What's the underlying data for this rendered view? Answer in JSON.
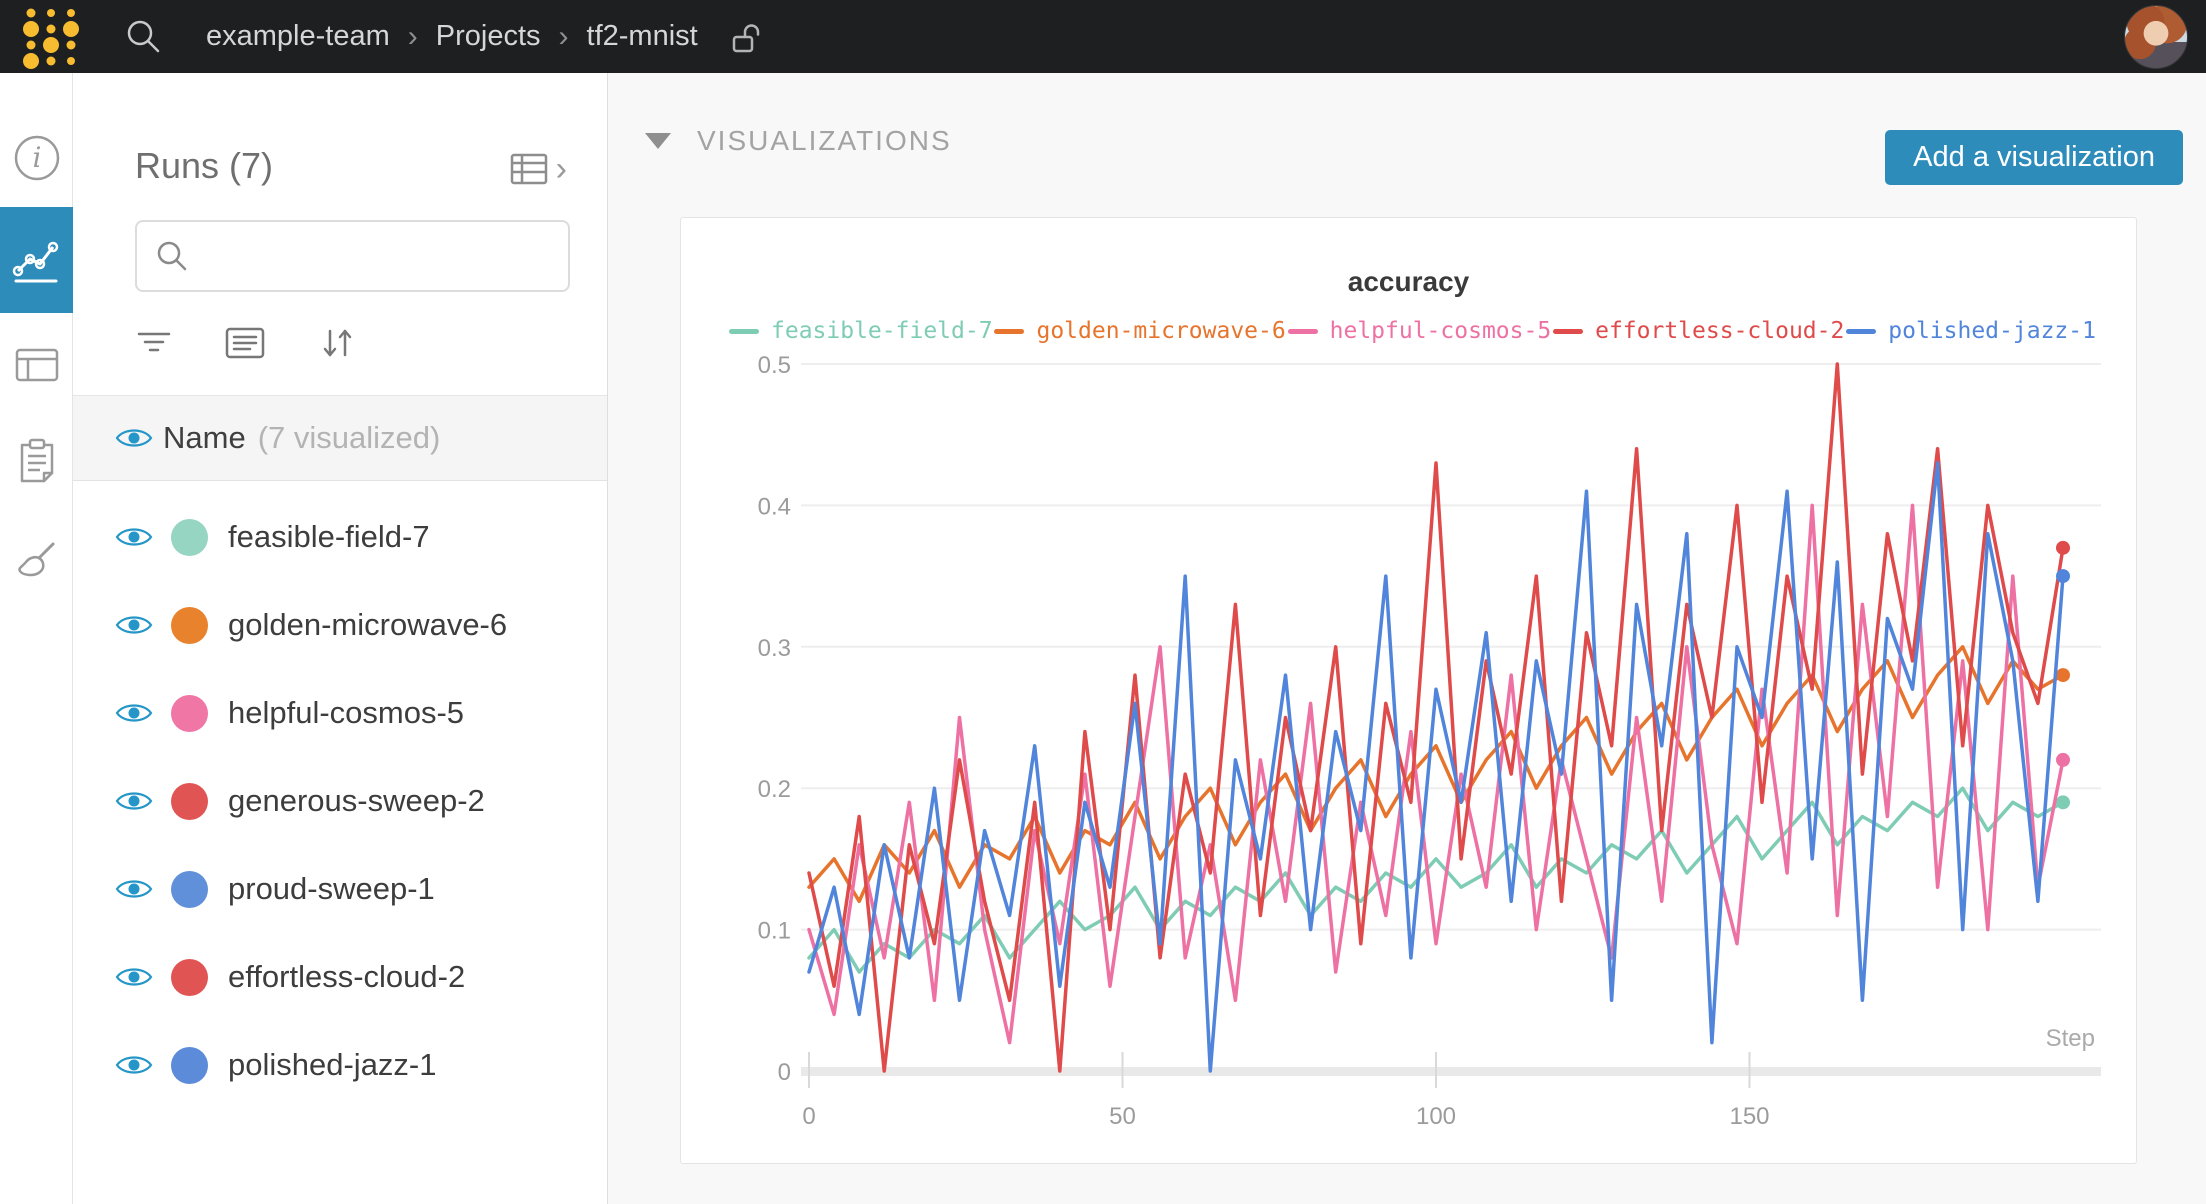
{
  "accent_color": "#2e8cbb",
  "navbar": {
    "breadcrumb": {
      "team": "example-team",
      "section": "Projects",
      "project": "tf2-mnist"
    },
    "privacy": "unlocked"
  },
  "sidebar": {
    "items": [
      {
        "id": "overview",
        "icon": "info-icon",
        "active": false
      },
      {
        "id": "charts",
        "icon": "line-chart-icon",
        "active": true
      },
      {
        "id": "table",
        "icon": "table-icon",
        "active": false
      },
      {
        "id": "notes",
        "icon": "clipboard-icon",
        "active": false
      },
      {
        "id": "sweeps",
        "icon": "broom-icon",
        "active": false
      }
    ]
  },
  "runs_panel": {
    "title": "Runs (7)",
    "search": {
      "value": ""
    },
    "header": {
      "label": "Name",
      "sublabel": "(7 visualized)"
    },
    "eye_color": "#2596c8",
    "runs": [
      {
        "name": "feasible-field-7",
        "color": "#97d5c3"
      },
      {
        "name": "golden-microwave-6",
        "color": "#e8822d"
      },
      {
        "name": "helpful-cosmos-5",
        "color": "#ef76a5"
      },
      {
        "name": "generous-sweep-2",
        "color": "#e05553"
      },
      {
        "name": "proud-sweep-1",
        "color": "#6090da"
      },
      {
        "name": "effortless-cloud-2",
        "color": "#e05553"
      },
      {
        "name": "polished-jazz-1",
        "color": "#5c8bda"
      }
    ]
  },
  "main": {
    "section_title": "VISUALIZATIONS",
    "add_button_label": "Add a visualization"
  },
  "chart_data": {
    "type": "line",
    "title": "accuracy",
    "xlabel": "Step",
    "ylabel": "",
    "xlim": [
      0,
      200
    ],
    "ylim": [
      0,
      0.5
    ],
    "xticks": [
      0,
      50,
      100,
      150
    ],
    "yticks": [
      0,
      0.1,
      0.2,
      0.3,
      0.4,
      0.5
    ],
    "grid": true,
    "legend_position": "top",
    "step_start": 0,
    "step_increment": 4,
    "series": [
      {
        "name": "feasible-field-7",
        "color": "#7fccb5",
        "values": [
          0.08,
          0.1,
          0.07,
          0.09,
          0.08,
          0.1,
          0.09,
          0.11,
          0.08,
          0.1,
          0.12,
          0.1,
          0.11,
          0.13,
          0.1,
          0.12,
          0.11,
          0.13,
          0.12,
          0.14,
          0.11,
          0.13,
          0.12,
          0.14,
          0.13,
          0.15,
          0.13,
          0.14,
          0.16,
          0.13,
          0.15,
          0.14,
          0.16,
          0.15,
          0.17,
          0.14,
          0.16,
          0.18,
          0.15,
          0.17,
          0.19,
          0.16,
          0.18,
          0.17,
          0.19,
          0.18,
          0.2,
          0.17,
          0.19,
          0.18,
          0.19
        ]
      },
      {
        "name": "golden-microwave-6",
        "color": "#e7742d",
        "values": [
          0.13,
          0.15,
          0.12,
          0.16,
          0.14,
          0.17,
          0.13,
          0.16,
          0.15,
          0.18,
          0.14,
          0.17,
          0.16,
          0.19,
          0.15,
          0.18,
          0.2,
          0.16,
          0.19,
          0.21,
          0.17,
          0.2,
          0.22,
          0.18,
          0.21,
          0.23,
          0.19,
          0.22,
          0.24,
          0.2,
          0.23,
          0.25,
          0.21,
          0.24,
          0.26,
          0.22,
          0.25,
          0.27,
          0.23,
          0.26,
          0.28,
          0.24,
          0.27,
          0.29,
          0.25,
          0.28,
          0.3,
          0.26,
          0.29,
          0.27,
          0.28
        ]
      },
      {
        "name": "helpful-cosmos-5",
        "color": "#ee71a4",
        "values": [
          0.1,
          0.04,
          0.16,
          0.08,
          0.19,
          0.05,
          0.25,
          0.1,
          0.02,
          0.17,
          0.09,
          0.21,
          0.06,
          0.18,
          0.3,
          0.08,
          0.16,
          0.05,
          0.22,
          0.12,
          0.26,
          0.07,
          0.19,
          0.11,
          0.24,
          0.09,
          0.21,
          0.13,
          0.28,
          0.1,
          0.22,
          0.15,
          0.08,
          0.25,
          0.12,
          0.3,
          0.16,
          0.09,
          0.27,
          0.14,
          0.4,
          0.11,
          0.33,
          0.18,
          0.4,
          0.13,
          0.29,
          0.1,
          0.35,
          0.13,
          0.22
        ]
      },
      {
        "name": "effortless-cloud-2",
        "color": "#df4b4a",
        "values": [
          0.14,
          0.06,
          0.18,
          0.0,
          0.16,
          0.09,
          0.22,
          0.12,
          0.05,
          0.19,
          0.0,
          0.24,
          0.1,
          0.28,
          0.08,
          0.21,
          0.14,
          0.33,
          0.11,
          0.25,
          0.17,
          0.3,
          0.09,
          0.26,
          0.19,
          0.43,
          0.15,
          0.29,
          0.21,
          0.35,
          0.12,
          0.31,
          0.23,
          0.44,
          0.17,
          0.33,
          0.25,
          0.4,
          0.19,
          0.35,
          0.27,
          0.5,
          0.21,
          0.38,
          0.29,
          0.44,
          0.23,
          0.4,
          0.31,
          0.26,
          0.37
        ]
      },
      {
        "name": "polished-jazz-1",
        "color": "#5185db",
        "values": [
          0.07,
          0.13,
          0.04,
          0.16,
          0.08,
          0.2,
          0.05,
          0.17,
          0.11,
          0.23,
          0.06,
          0.19,
          0.13,
          0.26,
          0.09,
          0.35,
          0.0,
          0.22,
          0.15,
          0.28,
          0.1,
          0.24,
          0.17,
          0.35,
          0.08,
          0.27,
          0.19,
          0.31,
          0.12,
          0.29,
          0.21,
          0.41,
          0.05,
          0.33,
          0.23,
          0.38,
          0.02,
          0.3,
          0.25,
          0.41,
          0.15,
          0.36,
          0.05,
          0.32,
          0.27,
          0.43,
          0.1,
          0.38,
          0.29,
          0.12,
          0.35
        ]
      }
    ]
  }
}
